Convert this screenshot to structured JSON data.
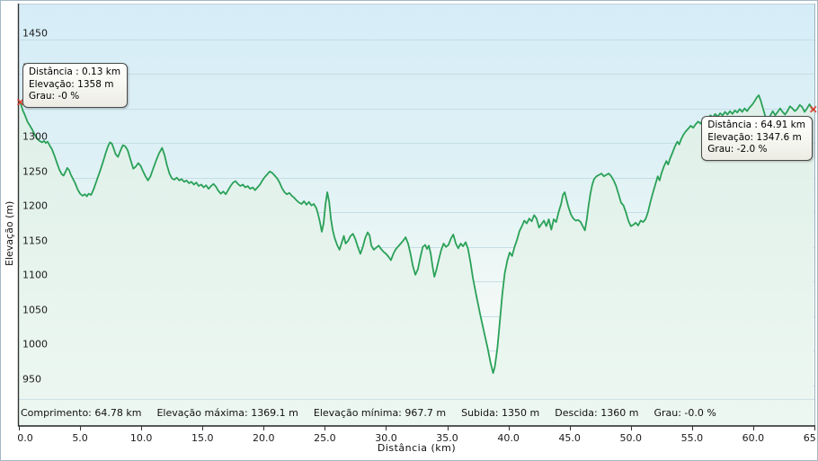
{
  "y_axis": {
    "title": "Elevação (m)",
    "ticks": [
      "1450",
      "1400",
      "1350",
      "1300",
      "1250",
      "1200",
      "1150",
      "1100",
      "1050",
      "1000",
      "950"
    ]
  },
  "x_axis": {
    "title": "Distância  (km)",
    "ticks": [
      "0.0",
      "5.0",
      "10.0",
      "15.0",
      "20.0",
      "25.0",
      "30.0",
      "35.0",
      "40.0",
      "45.0",
      "50.0",
      "55.0",
      "60.0",
      "65.0"
    ]
  },
  "tooltips": {
    "start": {
      "lines": [
        "Distância : 0.13 km",
        "Elevação: 1358 m",
        "Grau: -0 %"
      ]
    },
    "end": {
      "lines": [
        "Distância : 64.91 km",
        "Elevação: 1347.6 m",
        "Grau: -2.0 %"
      ]
    }
  },
  "status_bar": {
    "items": [
      "Comprimento: 64.78 km",
      "Elevação máxima: 1369.1 m",
      "Elevação mínima: 967.7 m",
      "Subida: 1350 m",
      "Descida: 1360 m",
      "Grau: -0.0 %"
    ]
  },
  "chart_data": {
    "type": "area",
    "title": "",
    "xlabel": "Distância (km)",
    "ylabel": "Elevação (m)",
    "xlim": [
      0,
      65
    ],
    "ylim": [
      892,
      1501
    ],
    "grid": true,
    "y_gridlines": [
      1450,
      1400,
      1350,
      1300,
      1250,
      1200,
      1150,
      1100,
      1050,
      1000,
      950
    ],
    "x_tick_values": [
      0,
      5,
      10,
      15,
      20,
      25,
      30,
      35,
      40,
      45,
      50,
      55,
      60,
      65
    ],
    "colors": {
      "line": "#2aa158",
      "area_top": "#dff0e9",
      "area_bottom": "#edf7f1",
      "grid": "#c6dde6",
      "bg_top": "#d6edf8",
      "bg_bottom": "#f3faf6",
      "marker": "#f0392b"
    },
    "stats": {
      "comprimento_km": 64.78,
      "elevacao_maxima_m": 1369.1,
      "elevacao_minima_m": 967.7,
      "subida_m": 1350,
      "descida_m": 1360,
      "grau_pct": -0.0
    },
    "markers": [
      {
        "x": 0.13,
        "y": 1358
      },
      {
        "x": 64.91,
        "y": 1347.6
      }
    ],
    "points": [
      [
        0,
        1360
      ],
      [
        0.13,
        1358
      ],
      [
        0.3,
        1348
      ],
      [
        0.5,
        1340
      ],
      [
        0.7,
        1331
      ],
      [
        0.9,
        1325
      ],
      [
        1.1,
        1319
      ],
      [
        1.3,
        1312
      ],
      [
        1.5,
        1306
      ],
      [
        1.7,
        1303
      ],
      [
        1.9,
        1301
      ],
      [
        2.05,
        1303
      ],
      [
        2.2,
        1300
      ],
      [
        2.35,
        1302
      ],
      [
        2.5,
        1297
      ],
      [
        2.7,
        1291
      ],
      [
        2.9,
        1282
      ],
      [
        3.1,
        1272
      ],
      [
        3.3,
        1262
      ],
      [
        3.5,
        1255
      ],
      [
        3.65,
        1253
      ],
      [
        3.8,
        1258
      ],
      [
        3.95,
        1264
      ],
      [
        4.1,
        1261
      ],
      [
        4.25,
        1254
      ],
      [
        4.4,
        1249
      ],
      [
        4.6,
        1242
      ],
      [
        4.8,
        1233
      ],
      [
        5.0,
        1227
      ],
      [
        5.2,
        1224
      ],
      [
        5.4,
        1226
      ],
      [
        5.55,
        1223
      ],
      [
        5.7,
        1227
      ],
      [
        5.9,
        1225
      ],
      [
        6.1,
        1233
      ],
      [
        6.3,
        1243
      ],
      [
        6.5,
        1253
      ],
      [
        6.7,
        1263
      ],
      [
        6.9,
        1274
      ],
      [
        7.1,
        1286
      ],
      [
        7.3,
        1296
      ],
      [
        7.45,
        1301
      ],
      [
        7.6,
        1299
      ],
      [
        7.75,
        1292
      ],
      [
        7.9,
        1284
      ],
      [
        8.1,
        1280
      ],
      [
        8.3,
        1289
      ],
      [
        8.5,
        1297
      ],
      [
        8.7,
        1295
      ],
      [
        8.9,
        1289
      ],
      [
        9.1,
        1277
      ],
      [
        9.35,
        1263
      ],
      [
        9.55,
        1266
      ],
      [
        9.75,
        1271
      ],
      [
        9.95,
        1267
      ],
      [
        10.15,
        1259
      ],
      [
        10.35,
        1252
      ],
      [
        10.55,
        1246
      ],
      [
        10.75,
        1252
      ],
      [
        10.95,
        1262
      ],
      [
        11.2,
        1274
      ],
      [
        11.45,
        1285
      ],
      [
        11.7,
        1293
      ],
      [
        11.9,
        1283
      ],
      [
        12.1,
        1268
      ],
      [
        12.3,
        1256
      ],
      [
        12.5,
        1249
      ],
      [
        12.7,
        1247
      ],
      [
        12.9,
        1250
      ],
      [
        13.1,
        1246
      ],
      [
        13.3,
        1248
      ],
      [
        13.5,
        1244
      ],
      [
        13.7,
        1246
      ],
      [
        13.9,
        1242
      ],
      [
        14.1,
        1244
      ],
      [
        14.3,
        1240
      ],
      [
        14.5,
        1243
      ],
      [
        14.7,
        1238
      ],
      [
        14.9,
        1240
      ],
      [
        15.1,
        1236
      ],
      [
        15.3,
        1239
      ],
      [
        15.5,
        1234
      ],
      [
        15.7,
        1238
      ],
      [
        15.9,
        1241
      ],
      [
        16.1,
        1237
      ],
      [
        16.3,
        1231
      ],
      [
        16.5,
        1227
      ],
      [
        16.7,
        1230
      ],
      [
        16.9,
        1226
      ],
      [
        17.1,
        1232
      ],
      [
        17.3,
        1238
      ],
      [
        17.5,
        1243
      ],
      [
        17.7,
        1245
      ],
      [
        17.9,
        1241
      ],
      [
        18.1,
        1238
      ],
      [
        18.3,
        1240
      ],
      [
        18.5,
        1236
      ],
      [
        18.7,
        1238
      ],
      [
        18.9,
        1234
      ],
      [
        19.1,
        1236
      ],
      [
        19.3,
        1232
      ],
      [
        19.5,
        1236
      ],
      [
        19.7,
        1240
      ],
      [
        19.9,
        1246
      ],
      [
        20.1,
        1251
      ],
      [
        20.3,
        1255
      ],
      [
        20.5,
        1259
      ],
      [
        20.7,
        1257
      ],
      [
        20.9,
        1253
      ],
      [
        21.1,
        1249
      ],
      [
        21.3,
        1243
      ],
      [
        21.5,
        1235
      ],
      [
        21.7,
        1229
      ],
      [
        21.9,
        1226
      ],
      [
        22.1,
        1228
      ],
      [
        22.3,
        1224
      ],
      [
        22.5,
        1221
      ],
      [
        22.7,
        1217
      ],
      [
        22.9,
        1214
      ],
      [
        23.1,
        1212
      ],
      [
        23.3,
        1216
      ],
      [
        23.5,
        1211
      ],
      [
        23.7,
        1215
      ],
      [
        23.9,
        1210
      ],
      [
        24.1,
        1212
      ],
      [
        24.3,
        1206
      ],
      [
        24.45,
        1197
      ],
      [
        24.6,
        1186
      ],
      [
        24.75,
        1172
      ],
      [
        24.9,
        1184
      ],
      [
        25.05,
        1212
      ],
      [
        25.2,
        1229
      ],
      [
        25.35,
        1215
      ],
      [
        25.5,
        1190
      ],
      [
        25.65,
        1174
      ],
      [
        25.8,
        1163
      ],
      [
        26.0,
        1153
      ],
      [
        26.2,
        1146
      ],
      [
        26.4,
        1157
      ],
      [
        26.55,
        1166
      ],
      [
        26.7,
        1155
      ],
      [
        26.9,
        1159
      ],
      [
        27.1,
        1166
      ],
      [
        27.3,
        1169
      ],
      [
        27.5,
        1161
      ],
      [
        27.7,
        1150
      ],
      [
        27.9,
        1140
      ],
      [
        28.1,
        1150
      ],
      [
        28.3,
        1163
      ],
      [
        28.5,
        1171
      ],
      [
        28.65,
        1167
      ],
      [
        28.8,
        1152
      ],
      [
        29.0,
        1146
      ],
      [
        29.2,
        1149
      ],
      [
        29.4,
        1152
      ],
      [
        29.6,
        1147
      ],
      [
        29.8,
        1143
      ],
      [
        30.0,
        1140
      ],
      [
        30.2,
        1136
      ],
      [
        30.4,
        1131
      ],
      [
        30.6,
        1140
      ],
      [
        30.8,
        1147
      ],
      [
        31.0,
        1151
      ],
      [
        31.2,
        1155
      ],
      [
        31.4,
        1159
      ],
      [
        31.6,
        1164
      ],
      [
        31.8,
        1155
      ],
      [
        32.0,
        1140
      ],
      [
        32.2,
        1122
      ],
      [
        32.4,
        1110
      ],
      [
        32.6,
        1118
      ],
      [
        32.8,
        1135
      ],
      [
        33.0,
        1150
      ],
      [
        33.2,
        1153
      ],
      [
        33.35,
        1147
      ],
      [
        33.5,
        1152
      ],
      [
        33.65,
        1140
      ],
      [
        33.8,
        1122
      ],
      [
        33.95,
        1107
      ],
      [
        34.1,
        1116
      ],
      [
        34.3,
        1131
      ],
      [
        34.5,
        1145
      ],
      [
        34.7,
        1155
      ],
      [
        34.9,
        1150
      ],
      [
        35.1,
        1153
      ],
      [
        35.3,
        1162
      ],
      [
        35.5,
        1168
      ],
      [
        35.7,
        1155
      ],
      [
        35.9,
        1148
      ],
      [
        36.1,
        1155
      ],
      [
        36.3,
        1151
      ],
      [
        36.5,
        1157
      ],
      [
        36.7,
        1147
      ],
      [
        36.9,
        1128
      ],
      [
        37.1,
        1105
      ],
      [
        37.4,
        1078
      ],
      [
        37.7,
        1052
      ],
      [
        38.0,
        1028
      ],
      [
        38.3,
        1004
      ],
      [
        38.55,
        982
      ],
      [
        38.75,
        968
      ],
      [
        38.9,
        978
      ],
      [
        39.1,
        1005
      ],
      [
        39.3,
        1043
      ],
      [
        39.5,
        1082
      ],
      [
        39.7,
        1112
      ],
      [
        39.9,
        1130
      ],
      [
        40.1,
        1142
      ],
      [
        40.3,
        1137
      ],
      [
        40.5,
        1150
      ],
      [
        40.7,
        1160
      ],
      [
        40.9,
        1173
      ],
      [
        41.1,
        1180
      ],
      [
        41.3,
        1188
      ],
      [
        41.5,
        1184
      ],
      [
        41.7,
        1191
      ],
      [
        41.9,
        1187
      ],
      [
        42.1,
        1196
      ],
      [
        42.3,
        1191
      ],
      [
        42.5,
        1178
      ],
      [
        42.7,
        1183
      ],
      [
        42.9,
        1188
      ],
      [
        43.1,
        1180
      ],
      [
        43.3,
        1190
      ],
      [
        43.5,
        1175
      ],
      [
        43.7,
        1190
      ],
      [
        43.9,
        1186
      ],
      [
        44.1,
        1200
      ],
      [
        44.3,
        1212
      ],
      [
        44.45,
        1225
      ],
      [
        44.6,
        1229
      ],
      [
        44.75,
        1218
      ],
      [
        44.9,
        1208
      ],
      [
        45.1,
        1197
      ],
      [
        45.3,
        1191
      ],
      [
        45.5,
        1188
      ],
      [
        45.7,
        1189
      ],
      [
        45.9,
        1186
      ],
      [
        46.1,
        1179
      ],
      [
        46.25,
        1174
      ],
      [
        46.4,
        1190
      ],
      [
        46.55,
        1210
      ],
      [
        46.7,
        1227
      ],
      [
        46.85,
        1240
      ],
      [
        47.0,
        1248
      ],
      [
        47.2,
        1252
      ],
      [
        47.4,
        1254
      ],
      [
        47.6,
        1256
      ],
      [
        47.8,
        1252
      ],
      [
        48.0,
        1254
      ],
      [
        48.2,
        1256
      ],
      [
        48.4,
        1252
      ],
      [
        48.6,
        1246
      ],
      [
        48.8,
        1238
      ],
      [
        49.0,
        1226
      ],
      [
        49.2,
        1214
      ],
      [
        49.4,
        1210
      ],
      [
        49.6,
        1200
      ],
      [
        49.8,
        1188
      ],
      [
        50.0,
        1180
      ],
      [
        50.2,
        1182
      ],
      [
        50.4,
        1185
      ],
      [
        50.6,
        1181
      ],
      [
        50.8,
        1188
      ],
      [
        51.0,
        1186
      ],
      [
        51.2,
        1190
      ],
      [
        51.4,
        1200
      ],
      [
        51.6,
        1215
      ],
      [
        51.8,
        1228
      ],
      [
        52.0,
        1240
      ],
      [
        52.2,
        1252
      ],
      [
        52.35,
        1246
      ],
      [
        52.5,
        1256
      ],
      [
        52.7,
        1266
      ],
      [
        52.9,
        1274
      ],
      [
        53.05,
        1269
      ],
      [
        53.2,
        1277
      ],
      [
        53.4,
        1286
      ],
      [
        53.6,
        1295
      ],
      [
        53.8,
        1302
      ],
      [
        53.95,
        1298
      ],
      [
        54.1,
        1305
      ],
      [
        54.3,
        1312
      ],
      [
        54.5,
        1317
      ],
      [
        54.7,
        1321
      ],
      [
        54.9,
        1325
      ],
      [
        55.1,
        1322
      ],
      [
        55.3,
        1327
      ],
      [
        55.5,
        1331
      ],
      [
        55.7,
        1328
      ],
      [
        55.9,
        1334
      ],
      [
        56.1,
        1331
      ],
      [
        56.3,
        1336
      ],
      [
        56.5,
        1340
      ],
      [
        56.7,
        1337
      ],
      [
        56.9,
        1342
      ],
      [
        57.1,
        1338
      ],
      [
        57.3,
        1343
      ],
      [
        57.5,
        1340
      ],
      [
        57.7,
        1345
      ],
      [
        57.9,
        1341
      ],
      [
        58.1,
        1346
      ],
      [
        58.3,
        1342
      ],
      [
        58.5,
        1347
      ],
      [
        58.7,
        1344
      ],
      [
        58.9,
        1349
      ],
      [
        59.1,
        1345
      ],
      [
        59.3,
        1350
      ],
      [
        59.5,
        1346
      ],
      [
        59.7,
        1351
      ],
      [
        59.9,
        1355
      ],
      [
        60.1,
        1360
      ],
      [
        60.3,
        1366
      ],
      [
        60.45,
        1369
      ],
      [
        60.6,
        1362
      ],
      [
        60.8,
        1350
      ],
      [
        61.0,
        1338
      ],
      [
        61.2,
        1332
      ],
      [
        61.4,
        1340
      ],
      [
        61.6,
        1346
      ],
      [
        61.8,
        1340
      ],
      [
        62.0,
        1345
      ],
      [
        62.2,
        1350
      ],
      [
        62.4,
        1345
      ],
      [
        62.6,
        1341
      ],
      [
        62.8,
        1346
      ],
      [
        63.0,
        1353
      ],
      [
        63.2,
        1350
      ],
      [
        63.4,
        1346
      ],
      [
        63.6,
        1349
      ],
      [
        63.8,
        1355
      ],
      [
        64.0,
        1352
      ],
      [
        64.2,
        1345
      ],
      [
        64.4,
        1350
      ],
      [
        64.6,
        1356
      ],
      [
        64.8,
        1350
      ],
      [
        64.91,
        1347.6
      ]
    ]
  }
}
